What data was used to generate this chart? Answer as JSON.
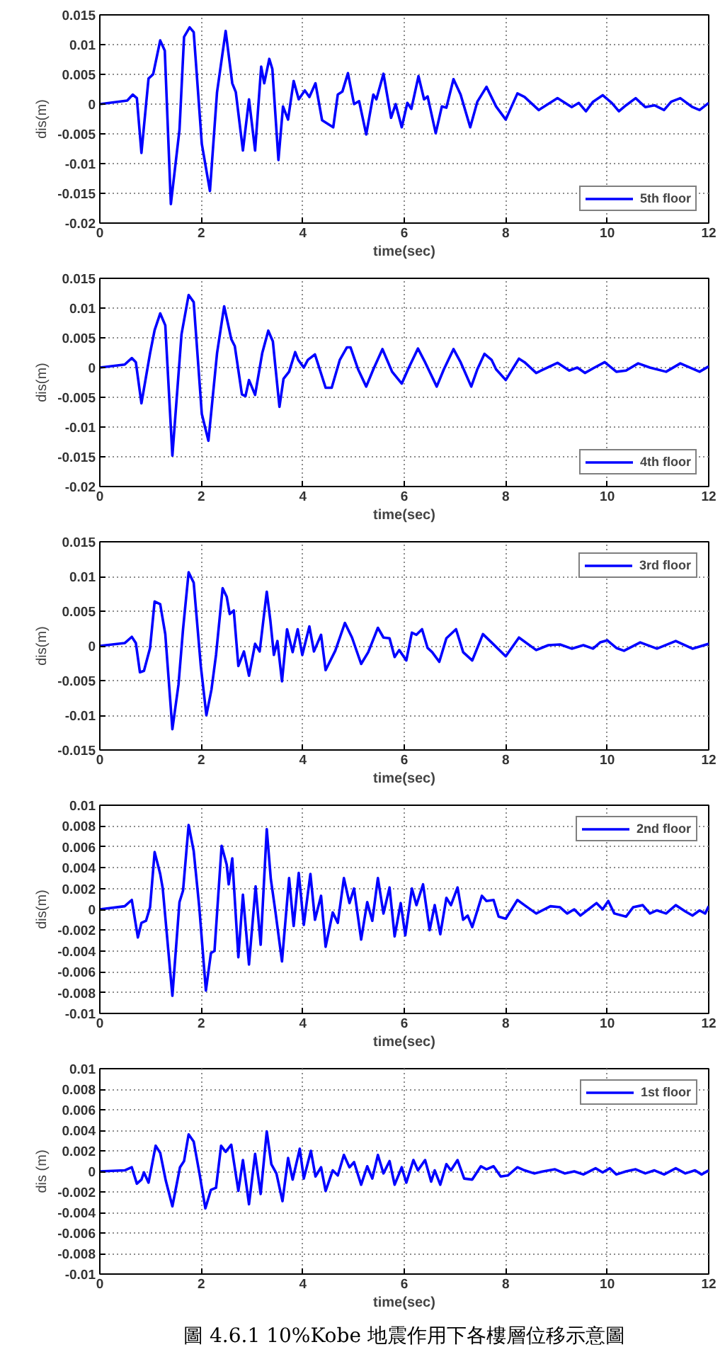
{
  "chart_data": [
    {
      "type": "line",
      "xlabel": "time(sec)",
      "ylabel": "dis(m)",
      "xlim": [
        0,
        12
      ],
      "xticks": [
        0,
        2,
        4,
        6,
        8,
        10,
        12
      ],
      "ylim": [
        -0.02,
        0.015
      ],
      "yticks": [
        -0.02,
        -0.015,
        -0.01,
        -0.005,
        0,
        0.005,
        0.01,
        0.015
      ],
      "grid": true,
      "legend": "bottom right",
      "series": [
        {
          "name": "5th floor",
          "color": "#0000ff",
          "x": [
            0,
            0.54,
            0.65,
            0.73,
            0.82,
            0.96,
            1.05,
            1.19,
            1.28,
            1.4,
            1.57,
            1.66,
            1.77,
            1.85,
            2.01,
            2.17,
            2.31,
            2.48,
            2.61,
            2.68,
            2.82,
            2.94,
            3.06,
            3.18,
            3.24,
            3.34,
            3.4,
            3.52,
            3.61,
            3.71,
            3.82,
            3.92,
            4.04,
            4.13,
            4.25,
            4.38,
            4.6,
            4.69,
            4.78,
            4.89,
            5.01,
            5.11,
            5.25,
            5.39,
            5.45,
            5.59,
            5.74,
            5.83,
            5.95,
            6.06,
            6.14,
            6.28,
            6.39,
            6.46,
            6.62,
            6.74,
            6.83,
            6.97,
            7.11,
            7.3,
            7.44,
            7.62,
            7.81,
            8,
            8.23,
            8.37,
            8.65,
            9.02,
            9.3,
            9.44,
            9.58,
            9.72,
            9.91,
            10.09,
            10.23,
            10.37,
            10.56,
            10.75,
            10.93,
            11.12,
            11.26,
            11.44,
            11.68,
            11.82,
            12
          ],
          "values": [
            0,
            0.0006,
            0.0016,
            0.001,
            -0.0082,
            0.0043,
            0.005,
            0.0107,
            0.009,
            -0.0168,
            -0.0043,
            0.0113,
            0.0129,
            0.0121,
            -0.0067,
            -0.0146,
            0.002,
            0.0123,
            0.0035,
            0.002,
            -0.0078,
            0.0008,
            -0.0078,
            0.0063,
            0.0035,
            0.0076,
            0.0059,
            -0.0094,
            -0.0004,
            -0.0026,
            0.0039,
            0.0008,
            0.0023,
            0.0012,
            0.0035,
            -0.0027,
            -0.0039,
            0.0016,
            0.0021,
            0.0052,
            0,
            0.0005,
            -0.0051,
            0.0016,
            0.0008,
            0.0051,
            -0.0023,
            0,
            -0.0039,
            0.0002,
            -0.0008,
            0.0047,
            0.0008,
            0.0013,
            -0.0049,
            -0.0004,
            -0.0006,
            0.0042,
            0.0016,
            -0.0039,
            0.0004,
            0.0029,
            -0.0004,
            -0.0026,
            0.0018,
            0.0012,
            -0.001,
            0.001,
            -0.0005,
            0.0002,
            -0.0012,
            0.0004,
            0.0015,
            0.0002,
            -0.0012,
            -0.0002,
            0.001,
            -0.0005,
            -0.0002,
            -0.001,
            0.0004,
            0.001,
            -0.0005,
            -0.001,
            0.0002
          ]
        }
      ]
    },
    {
      "type": "line",
      "xlabel": "time(sec)",
      "ylabel": "dis(m)",
      "xlim": [
        0,
        12
      ],
      "xticks": [
        0,
        2,
        4,
        6,
        8,
        10,
        12
      ],
      "ylim": [
        -0.02,
        0.015
      ],
      "yticks": [
        -0.02,
        -0.015,
        -0.01,
        -0.005,
        0,
        0.005,
        0.01,
        0.015
      ],
      "grid": true,
      "legend": "bottom right",
      "series": [
        {
          "name": "4th floor",
          "color": "#0000ff",
          "x": [
            0,
            0.49,
            0.63,
            0.71,
            0.82,
            0.99,
            1.08,
            1.19,
            1.29,
            1.43,
            1.61,
            1.75,
            1.85,
            2.01,
            2.14,
            2.31,
            2.45,
            2.59,
            2.66,
            2.8,
            2.87,
            2.94,
            3.06,
            3.2,
            3.32,
            3.41,
            3.54,
            3.62,
            3.73,
            3.85,
            3.91,
            4.02,
            4.1,
            4.24,
            4.45,
            4.57,
            4.73,
            4.87,
            4.94,
            5.09,
            5.25,
            5.39,
            5.57,
            5.76,
            5.95,
            6.09,
            6.27,
            6.41,
            6.64,
            6.78,
            6.97,
            7.11,
            7.32,
            7.44,
            7.58,
            7.72,
            7.81,
            8,
            8.26,
            8.37,
            8.6,
            9.02,
            9.25,
            9.41,
            9.56,
            9.75,
            9.95,
            10.18,
            10.37,
            10.61,
            10.84,
            11.16,
            11.44,
            11.82,
            12
          ],
          "values": [
            0,
            0.0005,
            0.0016,
            0.0009,
            -0.006,
            0.0024,
            0.0063,
            0.0091,
            0.0071,
            -0.0148,
            0.0056,
            0.0122,
            0.011,
            -0.0078,
            -0.0123,
            0.0024,
            0.0103,
            0.0048,
            0.0036,
            -0.0045,
            -0.0048,
            -0.0021,
            -0.0046,
            0.0024,
            0.0062,
            0.0044,
            -0.0066,
            -0.0019,
            -0.0007,
            0.0026,
            0.0013,
            0,
            0.0013,
            0.0022,
            -0.0034,
            -0.0034,
            0.0013,
            0.0034,
            0.0034,
            -0.0003,
            -0.0032,
            -0.0003,
            0.0031,
            -0.0007,
            -0.0027,
            0,
            0.0032,
            0.0009,
            -0.0032,
            -0.0003,
            0.0031,
            0.0009,
            -0.0032,
            -0.0003,
            0.0023,
            0.0013,
            -0.0003,
            -0.0021,
            0.0015,
            0.0009,
            -0.0009,
            0.0008,
            -0.0005,
            0,
            -0.0009,
            0,
            0.0009,
            -0.0007,
            -0.0005,
            0.0007,
            0,
            -0.0007,
            0.0007,
            -0.0007,
            0.0002
          ]
        }
      ]
    },
    {
      "type": "line",
      "xlabel": "time(sec)",
      "ylabel": "dis(m)",
      "xlim": [
        0,
        12
      ],
      "xticks": [
        0,
        2,
        4,
        6,
        8,
        10,
        12
      ],
      "ylim": [
        -0.015,
        0.015
      ],
      "yticks": [
        -0.015,
        -0.01,
        -0.005,
        0,
        0.005,
        0.01,
        0.015
      ],
      "grid": true,
      "legend": "top right",
      "series": [
        {
          "name": "3rd floor",
          "color": "#0000ff",
          "x": [
            0,
            0.49,
            0.63,
            0.71,
            0.79,
            0.87,
            0.99,
            1.08,
            1.19,
            1.29,
            1.43,
            1.55,
            1.64,
            1.75,
            1.85,
            1.99,
            2.1,
            2.2,
            2.29,
            2.42,
            2.5,
            2.56,
            2.64,
            2.73,
            2.84,
            2.94,
            3.06,
            3.15,
            3.29,
            3.36,
            3.43,
            3.5,
            3.59,
            3.69,
            3.8,
            3.9,
            3.99,
            4.13,
            4.22,
            4.36,
            4.45,
            4.64,
            4.83,
            4.97,
            5.15,
            5.29,
            5.48,
            5.59,
            5.71,
            5.81,
            5.9,
            6.04,
            6.15,
            6.24,
            6.35,
            6.46,
            6.55,
            6.69,
            6.83,
            7.02,
            7.16,
            7.34,
            7.55,
            7.72,
            8,
            8.26,
            8.6,
            8.84,
            9.07,
            9.3,
            9.53,
            9.72,
            9.86,
            10,
            10.18,
            10.33,
            10.65,
            10.98,
            11.35,
            11.68,
            12
          ],
          "values": [
            0,
            0.0004,
            0.0013,
            0.0004,
            -0.0038,
            -0.0036,
            -0.0003,
            0.0064,
            0.006,
            0.0017,
            -0.012,
            -0.0056,
            0.0024,
            0.0106,
            0.0091,
            -0.0029,
            -0.01,
            -0.0063,
            -0.0013,
            0.0083,
            0.0071,
            0.0046,
            0.0051,
            -0.0029,
            -0.0008,
            -0.0043,
            0.0003,
            -0.0008,
            0.0078,
            0.0037,
            -0.0013,
            0.0007,
            -0.0051,
            0.0024,
            -0.0009,
            0.0024,
            -0.0013,
            0.0028,
            -0.0008,
            0.0016,
            -0.0035,
            -0.0007,
            0.0033,
            0.0012,
            -0.0026,
            -0.0009,
            0.0026,
            0.0012,
            0.0011,
            -0.0016,
            -0.0006,
            -0.0021,
            0.0019,
            0.0016,
            0.0024,
            -0.0003,
            -0.0009,
            -0.0023,
            0.0011,
            0.0024,
            -0.0009,
            -0.0021,
            0.0017,
            0.0005,
            -0.0015,
            0.0012,
            -0.0006,
            0.0001,
            0.0002,
            -0.0004,
            0.0001,
            -0.0004,
            0.0005,
            0.0008,
            -0.0003,
            -0.0007,
            0.0005,
            -0.0004,
            0.0007,
            -0.0004,
            0.0003
          ]
        }
      ]
    },
    {
      "type": "line",
      "xlabel": "time(sec)",
      "ylabel": "dis(m)",
      "xlim": [
        0,
        12
      ],
      "xticks": [
        0,
        2,
        4,
        6,
        8,
        10,
        12
      ],
      "ylim": [
        -0.01,
        0.01
      ],
      "yticks": [
        -0.01,
        -0.008,
        -0.006,
        -0.004,
        -0.002,
        0,
        0.002,
        0.004,
        0.006,
        0.008,
        0.01
      ],
      "grid": true,
      "legend": "top right",
      "series": [
        {
          "name": "2nd floor",
          "color": "#0000ff",
          "x": [
            0,
            0.49,
            0.63,
            0.75,
            0.82,
            0.91,
            0.99,
            1.08,
            1.19,
            1.24,
            1.43,
            1.57,
            1.64,
            1.75,
            1.85,
            1.96,
            2.09,
            2.19,
            2.26,
            2.4,
            2.5,
            2.54,
            2.61,
            2.73,
            2.82,
            2.94,
            3.07,
            3.17,
            3.29,
            3.37,
            3.46,
            3.59,
            3.73,
            3.82,
            3.92,
            4.02,
            4.15,
            4.24,
            4.36,
            4.45,
            4.59,
            4.69,
            4.81,
            4.92,
            5.01,
            5.15,
            5.27,
            5.37,
            5.48,
            5.59,
            5.71,
            5.81,
            5.93,
            6.02,
            6.15,
            6.24,
            6.37,
            6.5,
            6.6,
            6.71,
            6.83,
            6.92,
            7.05,
            7.16,
            7.25,
            7.34,
            7.53,
            7.62,
            7.76,
            7.86,
            8,
            8.23,
            8.37,
            8.6,
            8.88,
            9.07,
            9.21,
            9.35,
            9.47,
            9.63,
            9.79,
            9.91,
            10.02,
            10.14,
            10.37,
            10.51,
            10.7,
            10.84,
            10.98,
            11.16,
            11.35,
            11.54,
            11.68,
            11.82,
            11.93,
            12
          ],
          "values": [
            0,
            0.0003,
            0.0009,
            -0.0027,
            -0.0013,
            -0.0011,
            0.0002,
            0.0055,
            0.0034,
            0.002,
            -0.0083,
            0.0007,
            0.0018,
            0.0081,
            0.0056,
            0.0002,
            -0.0078,
            -0.0042,
            -0.004,
            0.0061,
            0.0043,
            0.0024,
            0.0049,
            -0.0046,
            0.0014,
            -0.0053,
            0.0022,
            -0.0034,
            0.0077,
            0.0029,
            -0.0002,
            -0.005,
            0.003,
            -0.0016,
            0.0035,
            -0.0015,
            0.0034,
            -0.001,
            0.0013,
            -0.0036,
            -0.0003,
            -0.0013,
            0.003,
            0.0006,
            0.002,
            -0.0029,
            0.0007,
            -0.0011,
            0.003,
            -0.0004,
            0.0021,
            -0.0026,
            0.0006,
            -0.0025,
            0.002,
            0.0004,
            0.0024,
            -0.002,
            0.0004,
            -0.0024,
            0.0011,
            0.0004,
            0.0021,
            -0.001,
            -0.0006,
            -0.0017,
            0.0013,
            0.0008,
            0.0009,
            -0.0007,
            -0.0009,
            0.0009,
            0.0004,
            -0.0004,
            0.0003,
            0.0002,
            -0.0004,
            0,
            -0.0006,
            0,
            0.0006,
            0,
            0.0008,
            -0.0004,
            -0.0007,
            0.0002,
            0.0004,
            -0.0004,
            -0.0001,
            -0.0004,
            0.0004,
            -0.0002,
            -0.0006,
            -0.0001,
            -0.0004,
            0.0003
          ]
        }
      ]
    },
    {
      "type": "line",
      "xlabel": "time(sec)",
      "ylabel": "dis (m)",
      "xlim": [
        0,
        12
      ],
      "xticks": [
        0,
        2,
        4,
        6,
        8,
        10,
        12
      ],
      "ylim": [
        -0.01,
        0.01
      ],
      "yticks": [
        -0.01,
        -0.008,
        -0.006,
        -0.004,
        -0.002,
        0,
        0.002,
        0.004,
        0.006,
        0.008,
        0.01
      ],
      "grid": true,
      "legend": "top right",
      "annotations": [
        "圖 4.6.1 10%Kobe 地震作用下各樓層位移示意圖"
      ],
      "series": [
        {
          "name": "1st floor",
          "color": "#0000ff",
          "x": [
            0,
            0.49,
            0.63,
            0.73,
            0.82,
            0.87,
            0.96,
            1.1,
            1.19,
            1.3,
            1.43,
            1.58,
            1.66,
            1.75,
            1.85,
            1.96,
            2.08,
            2.19,
            2.29,
            2.39,
            2.48,
            2.59,
            2.73,
            2.82,
            2.94,
            3.06,
            3.17,
            3.29,
            3.38,
            3.48,
            3.6,
            3.71,
            3.8,
            3.94,
            4.02,
            4.16,
            4.25,
            4.36,
            4.45,
            4.59,
            4.69,
            4.81,
            4.92,
            5.01,
            5.15,
            5.27,
            5.37,
            5.48,
            5.59,
            5.71,
            5.81,
            5.95,
            6.04,
            6.18,
            6.27,
            6.41,
            6.53,
            6.6,
            6.71,
            6.83,
            6.92,
            7.05,
            7.18,
            7.34,
            7.51,
            7.62,
            7.76,
            7.9,
            8.04,
            8.23,
            8.37,
            8.56,
            8.74,
            8.97,
            9.16,
            9.35,
            9.53,
            9.77,
            9.91,
            10.05,
            10.18,
            10.37,
            10.56,
            10.75,
            10.93,
            11.12,
            11.35,
            11.54,
            11.73,
            11.86,
            12
          ],
          "values": [
            0,
            0.0001,
            0.0004,
            -0.0012,
            -0.0008,
            -0.0001,
            -0.0011,
            0.0025,
            0.0018,
            -0.0009,
            -0.0034,
            0.0004,
            0.001,
            0.0036,
            0.0029,
            -0.0001,
            -0.0036,
            -0.0018,
            -0.0016,
            0.0025,
            0.0019,
            0.0026,
            -0.0019,
            0.0011,
            -0.0032,
            0.0017,
            -0.0022,
            0.0039,
            0.0007,
            -0.0002,
            -0.0029,
            0.0013,
            -0.0008,
            0.0022,
            -0.0007,
            0.002,
            -0.0005,
            0.0004,
            -0.0019,
            0.0001,
            -0.0004,
            0.0016,
            0.0004,
            0.0009,
            -0.0013,
            0.0005,
            -0.0007,
            0.0016,
            -0.0002,
            0.001,
            -0.0013,
            0.0004,
            -0.0011,
            0.0011,
            0.0001,
            0.0011,
            -0.001,
            0.0001,
            -0.0013,
            0.0007,
            0.0001,
            0.0011,
            -0.0007,
            -0.0008,
            0.0005,
            0.0002,
            0.0005,
            -0.0005,
            -0.0004,
            0.0004,
            0.0001,
            -0.0002,
            0,
            0.0002,
            -0.0002,
            0,
            -0.0003,
            0.0003,
            -0.0001,
            0.0003,
            -0.0003,
            0,
            0.0002,
            -0.0002,
            0.0001,
            -0.0003,
            0.0003,
            -0.0002,
            0.0001,
            -0.0003,
            0.0001
          ]
        }
      ]
    }
  ]
}
